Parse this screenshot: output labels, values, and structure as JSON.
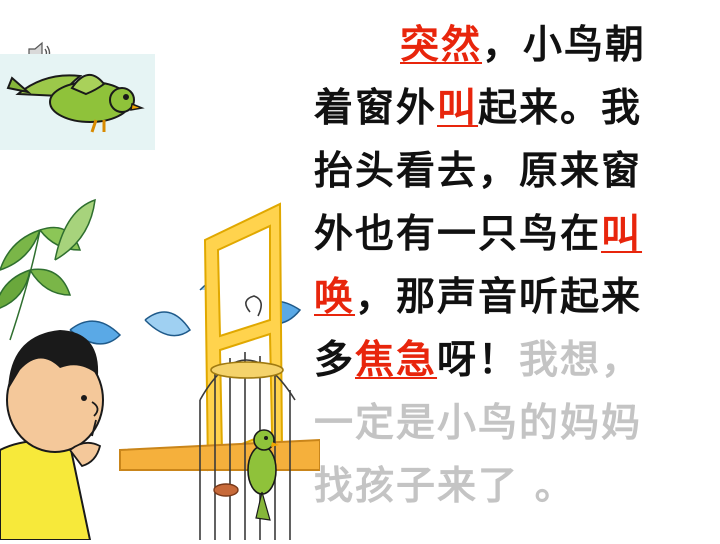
{
  "colors": {
    "text": "#111111",
    "highlight": "#e8250c",
    "faded": "#c4c4c4",
    "bird_panel_bg": "#e6f4f4",
    "bird_green": "#8fc23a"
  },
  "icons": {
    "speaker": "speaker-icon"
  },
  "lines": [
    {
      "segments": [
        {
          "text": "突然",
          "style": "hl"
        },
        {
          "text": "，小鸟朝",
          "style": "normal"
        }
      ]
    },
    {
      "segments": [
        {
          "text": "着窗外",
          "style": "normal"
        },
        {
          "text": "叫",
          "style": "hl"
        },
        {
          "text": "起来。我",
          "style": "normal"
        }
      ]
    },
    {
      "segments": [
        {
          "text": "抬头看去，原来窗",
          "style": "normal"
        }
      ]
    },
    {
      "segments": [
        {
          "text": "外也有一只鸟在",
          "style": "normal"
        },
        {
          "text": "叫",
          "style": "hl"
        }
      ]
    },
    {
      "segments": [
        {
          "text": "唤",
          "style": "hl"
        },
        {
          "text": "，那声音听起来",
          "style": "normal"
        }
      ]
    },
    {
      "segments": [
        {
          "text": "多",
          "style": "normal"
        },
        {
          "text": "焦急",
          "style": "hl"
        },
        {
          "text": "呀！",
          "style": "normal"
        },
        {
          "text": "我想，",
          "style": "faded"
        }
      ]
    },
    {
      "segments": [
        {
          "text": "一定是小鸟的妈妈",
          "style": "faded"
        }
      ]
    },
    {
      "segments": [
        {
          "text": "找孩子来了 。",
          "style": "faded"
        }
      ]
    }
  ]
}
